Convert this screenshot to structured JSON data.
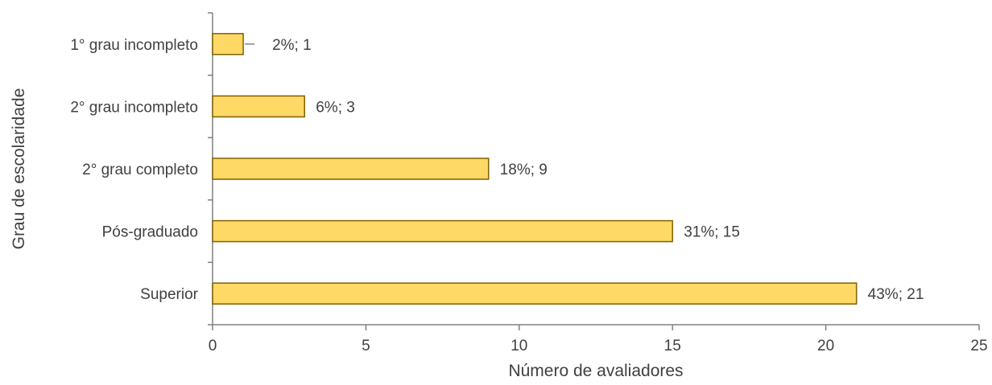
{
  "chart_data": {
    "type": "bar",
    "orientation": "horizontal",
    "categories": [
      "1° grau incompleto",
      "2° grau incompleto",
      "2° grau completo",
      "Pós-graduado",
      "Superior"
    ],
    "values": [
      1,
      3,
      9,
      15,
      21
    ],
    "data_labels": [
      "2%; 1",
      "6%; 3",
      "18%; 9",
      "31%; 15",
      "43%; 21"
    ],
    "xlabel": "Número de avaliadores",
    "ylabel": "Grau de escolaridade",
    "xlim": [
      0,
      25
    ],
    "xticks": [
      0,
      5,
      10,
      15,
      20,
      25
    ],
    "xtick_labels": [
      "0",
      "5",
      "10",
      "15",
      "20",
      "25"
    ],
    "grid": false,
    "legend": "none"
  },
  "colors": {
    "bar_fill": "#FFD966",
    "bar_stroke": "#7F6000",
    "axis": "#808080",
    "text": "#404040"
  }
}
